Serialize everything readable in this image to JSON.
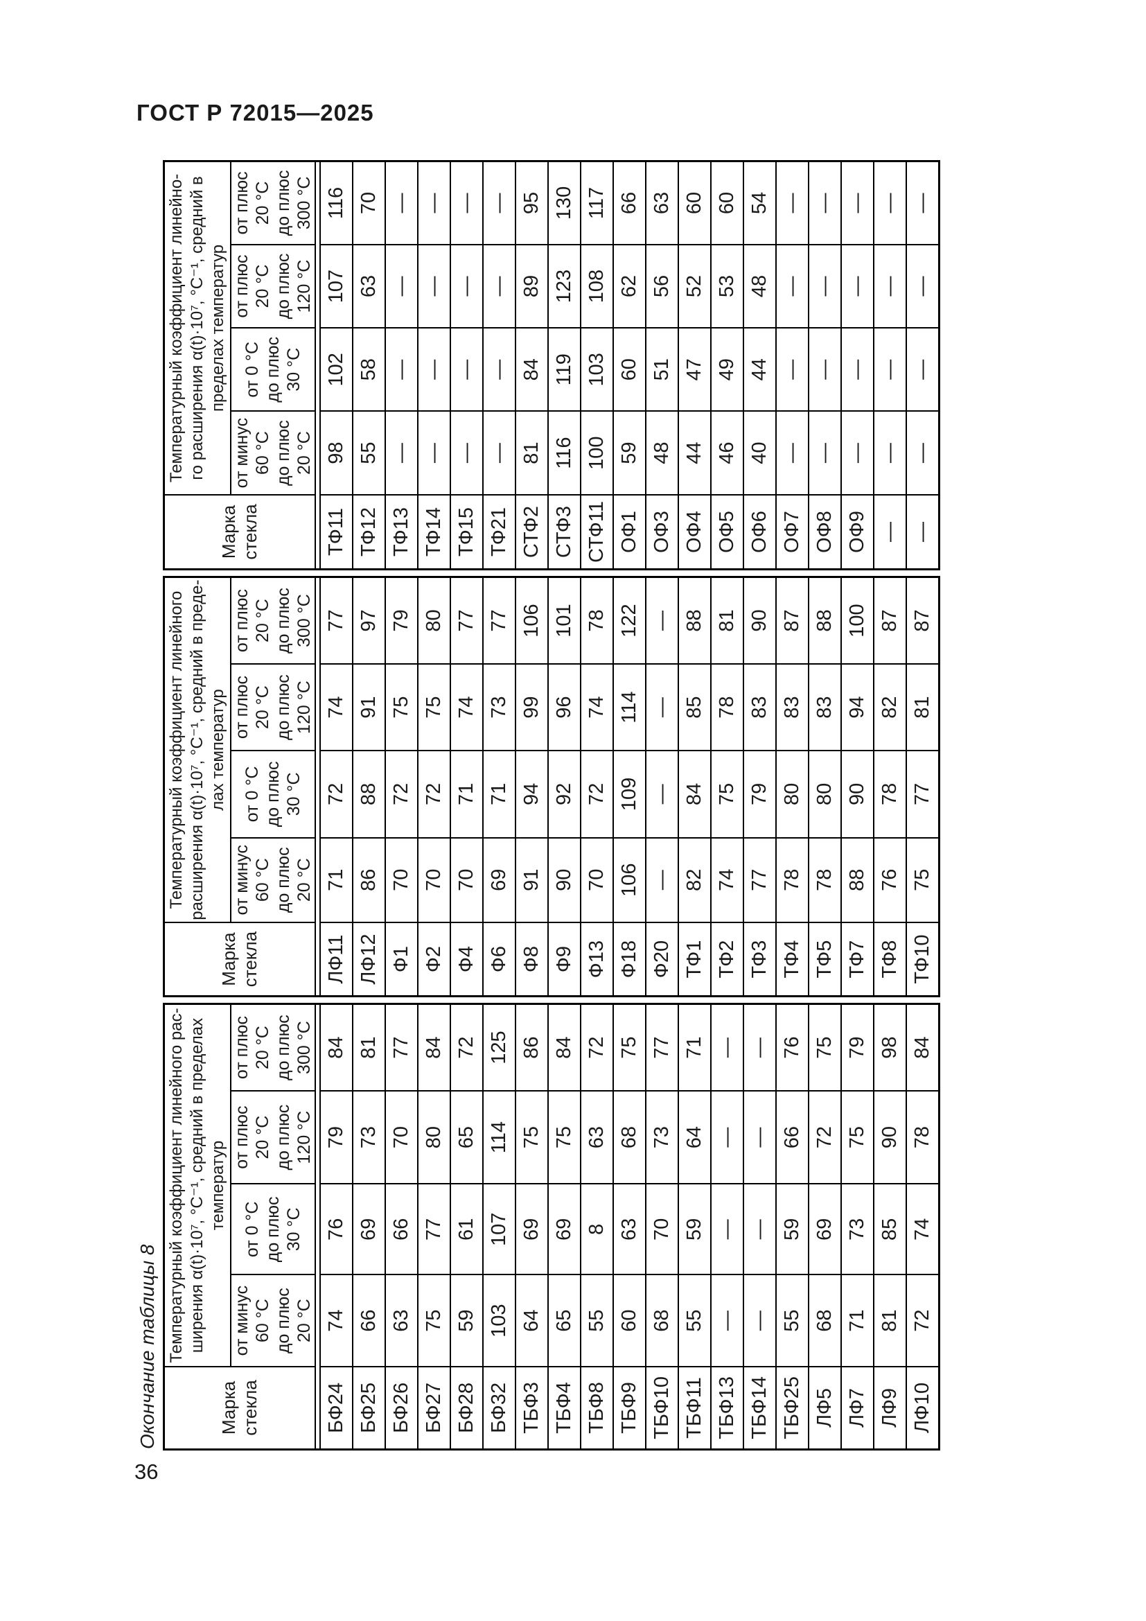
{
  "page": {
    "header": "ГОСТ Р 72015—2025",
    "page_number": "36",
    "caption": "Окончание таблицы 8"
  },
  "table": {
    "mark_header": "Марка\nстекла",
    "temp_headers": [
      "от минус\n60 °С\nдо плюс\n20 °С",
      "от 0 °С\nдо плюс\n30 °С",
      "от плюс\n20 °С\nдо плюс\n120 °С",
      "от плюс\n20 °С\nдо плюс\n300 °С"
    ],
    "groups": [
      {
        "coeff_header": "Температурный коэффициент линейного рас-\nширения α(t)·10⁷, °С⁻¹, средний в пределах\nтемператур",
        "rows": [
          [
            "БФ24",
            "74",
            "76",
            "79",
            "84"
          ],
          [
            "БФ25",
            "66",
            "69",
            "73",
            "81"
          ],
          [
            "БФ26",
            "63",
            "66",
            "70",
            "77"
          ],
          [
            "БФ27",
            "75",
            "77",
            "80",
            "84"
          ],
          [
            "БФ28",
            "59",
            "61",
            "65",
            "72"
          ],
          [
            "БФ32",
            "103",
            "107",
            "114",
            "125"
          ],
          [
            "ТБФ3",
            "64",
            "69",
            "75",
            "86"
          ],
          [
            "ТБФ4",
            "65",
            "69",
            "75",
            "84"
          ],
          [
            "ТБФ8",
            "55",
            "8",
            "63",
            "72"
          ],
          [
            "ТБФ9",
            "60",
            "63",
            "68",
            "75"
          ],
          [
            "ТБФ10",
            "68",
            "70",
            "73",
            "77"
          ],
          [
            "ТБФ11",
            "55",
            "59",
            "64",
            "71"
          ],
          [
            "ТБФ13",
            "—",
            "—",
            "—",
            "—"
          ],
          [
            "ТБФ14",
            "—",
            "—",
            "—",
            "—"
          ],
          [
            "ТБФ25",
            "55",
            "59",
            "66",
            "76"
          ],
          [
            "ЛФ5",
            "68",
            "69",
            "72",
            "75"
          ],
          [
            "ЛФ7",
            "71",
            "73",
            "75",
            "79"
          ],
          [
            "ЛФ9",
            "81",
            "85",
            "90",
            "98"
          ],
          [
            "ЛФ10",
            "72",
            "74",
            "78",
            "84"
          ]
        ]
      },
      {
        "coeff_header": "Температурный коэффициент линейного\nрасширения α(t)·10⁷, °С⁻¹, средний в преде-\nлах температур",
        "rows": [
          [
            "ЛФ11",
            "71",
            "72",
            "74",
            "77"
          ],
          [
            "ЛФ12",
            "86",
            "88",
            "91",
            "97"
          ],
          [
            "Ф1",
            "70",
            "72",
            "75",
            "79"
          ],
          [
            "Ф2",
            "70",
            "72",
            "75",
            "80"
          ],
          [
            "Ф4",
            "70",
            "71",
            "74",
            "77"
          ],
          [
            "Ф6",
            "69",
            "71",
            "73",
            "77"
          ],
          [
            "Ф8",
            "91",
            "94",
            "99",
            "106"
          ],
          [
            "Ф9",
            "90",
            "92",
            "96",
            "101"
          ],
          [
            "Ф13",
            "70",
            "72",
            "74",
            "78"
          ],
          [
            "Ф18",
            "106",
            "109",
            "114",
            "122"
          ],
          [
            "Ф20",
            "—",
            "—",
            "—",
            "—"
          ],
          [
            "ТФ1",
            "82",
            "84",
            "85",
            "88"
          ],
          [
            "ТФ2",
            "74",
            "75",
            "78",
            "81"
          ],
          [
            "ТФ3",
            "77",
            "79",
            "83",
            "90"
          ],
          [
            "ТФ4",
            "78",
            "80",
            "83",
            "87"
          ],
          [
            "ТФ5",
            "78",
            "80",
            "83",
            "88"
          ],
          [
            "ТФ7",
            "88",
            "90",
            "94",
            "100"
          ],
          [
            "ТФ8",
            "76",
            "78",
            "82",
            "87"
          ],
          [
            "ТФ10",
            "75",
            "77",
            "81",
            "87"
          ]
        ]
      },
      {
        "coeff_header": "Температурный коэффициент линейно-\nго расширения α(t)·10⁷, °С⁻¹, средний в\nпределах температур",
        "rows": [
          [
            "ТФ11",
            "98",
            "102",
            "107",
            "116"
          ],
          [
            "ТФ12",
            "55",
            "58",
            "63",
            "70"
          ],
          [
            "ТФ13",
            "—",
            "—",
            "—",
            "—"
          ],
          [
            "ТФ14",
            "—",
            "—",
            "—",
            "—"
          ],
          [
            "ТФ15",
            "—",
            "—",
            "—",
            "—"
          ],
          [
            "ТФ21",
            "—",
            "—",
            "—",
            "—"
          ],
          [
            "СТФ2",
            "81",
            "84",
            "89",
            "95"
          ],
          [
            "СТФ3",
            "116",
            "119",
            "123",
            "130"
          ],
          [
            "СТФ11",
            "100",
            "103",
            "108",
            "117"
          ],
          [
            "ОФ1",
            "59",
            "60",
            "62",
            "66"
          ],
          [
            "ОФ3",
            "48",
            "51",
            "56",
            "63"
          ],
          [
            "ОФ4",
            "44",
            "47",
            "52",
            "60"
          ],
          [
            "ОФ5",
            "46",
            "49",
            "53",
            "60"
          ],
          [
            "ОФ6",
            "40",
            "44",
            "48",
            "54"
          ],
          [
            "ОФ7",
            "—",
            "—",
            "—",
            "—"
          ],
          [
            "ОФ8",
            "—",
            "—",
            "—",
            "—"
          ],
          [
            "ОФ9",
            "—",
            "—",
            "—",
            "—"
          ],
          [
            "—",
            "—",
            "—",
            "—",
            "—"
          ],
          [
            "—",
            "—",
            "—",
            "—",
            "—"
          ]
        ]
      }
    ]
  }
}
